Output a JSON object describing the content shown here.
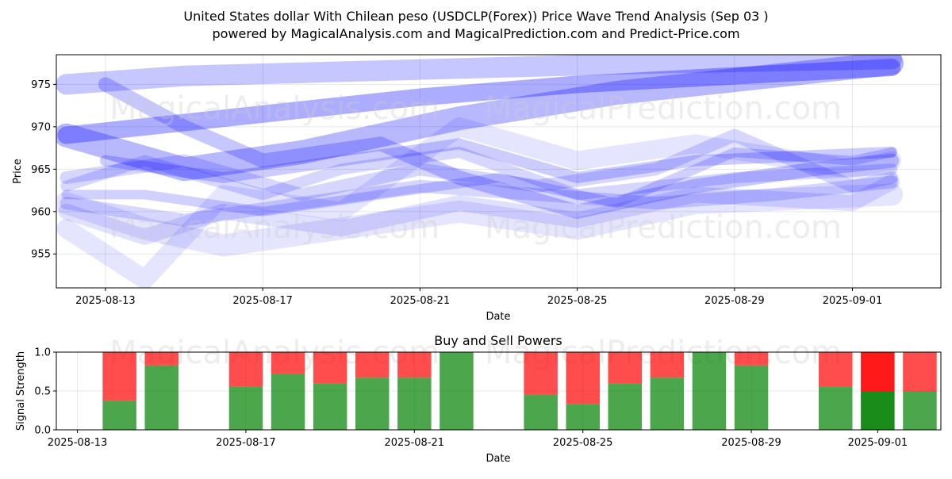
{
  "header": {
    "title": "United States dollar With Chilean peso (USDCLP(Forex)) Price Wave Trend Analysis (Sep 03 )",
    "subtitle": "powered by MagicalAnalysis.com and MagicalPrediction.com and Predict-Price.com"
  },
  "watermarks": [
    "MagicalAnalysis.com",
    "MagicalPrediction.com"
  ],
  "colors": {
    "wave": "#0000ff",
    "buy": "#008000",
    "sell": "#ff0000"
  },
  "chart_data": [
    {
      "type": "area",
      "title": "",
      "xlabel": "Date",
      "ylabel": "Price",
      "ylim": [
        951,
        978.5
      ],
      "xlim": [
        "2025-08-12",
        "2025-09-03"
      ],
      "x_ticks": [
        "2025-08-13",
        "2025-08-17",
        "2025-08-21",
        "2025-08-25",
        "2025-08-29",
        "2025-09-01"
      ],
      "y_ticks": [
        955,
        960,
        965,
        970,
        975
      ],
      "grid": true,
      "series": [
        {
          "points": [
            [
              "2025-08-12",
              969
            ],
            [
              "2025-08-14",
              970
            ],
            [
              "2025-08-17",
              971.5
            ],
            [
              "2025-08-21",
              973.5
            ],
            [
              "2025-08-25",
              975
            ],
            [
              "2025-08-29",
              976
            ],
            [
              "2025-09-02",
              977
            ]
          ]
        },
        {
          "points": [
            [
              "2025-08-12",
              969
            ],
            [
              "2025-08-15",
              965
            ],
            [
              "2025-08-18",
              967
            ],
            [
              "2025-08-22",
              971
            ],
            [
              "2025-08-26",
              974
            ],
            [
              "2025-08-30",
              976
            ],
            [
              "2025-09-02",
              977.5
            ]
          ]
        },
        {
          "points": [
            [
              "2025-08-12",
              975
            ],
            [
              "2025-08-15",
              976
            ],
            [
              "2025-08-19",
              976.5
            ],
            [
              "2025-08-23",
              977
            ],
            [
              "2025-08-27",
              977.5
            ],
            [
              "2025-09-02",
              978
            ]
          ]
        },
        {
          "points": [
            [
              "2025-08-13",
              975
            ],
            [
              "2025-08-15",
              970
            ],
            [
              "2025-08-17",
              966
            ],
            [
              "2025-08-20",
              968
            ],
            [
              "2025-08-22",
              964
            ],
            [
              "2025-08-25",
              960
            ],
            [
              "2025-08-28",
              963
            ],
            [
              "2025-08-31",
              965
            ],
            [
              "2025-09-02",
              966
            ]
          ]
        },
        {
          "points": [
            [
              "2025-08-12",
              963
            ],
            [
              "2025-08-14",
              966
            ],
            [
              "2025-08-17",
              962
            ],
            [
              "2025-08-19",
              965
            ],
            [
              "2025-08-22",
              967
            ],
            [
              "2025-08-25",
              962
            ],
            [
              "2025-08-29",
              964
            ],
            [
              "2025-09-02",
              965
            ]
          ]
        },
        {
          "points": [
            [
              "2025-08-12",
              961
            ],
            [
              "2025-08-15",
              959
            ],
            [
              "2025-08-18",
              961
            ],
            [
              "2025-08-21",
              963
            ],
            [
              "2025-08-24",
              962
            ],
            [
              "2025-08-27",
              961
            ],
            [
              "2025-08-30",
              962
            ],
            [
              "2025-09-02",
              963.5
            ]
          ]
        },
        {
          "points": [
            [
              "2025-08-12",
              960
            ],
            [
              "2025-08-14",
              957
            ],
            [
              "2025-08-16",
              960
            ],
            [
              "2025-08-19",
              958
            ],
            [
              "2025-08-22",
              961
            ],
            [
              "2025-08-25",
              959
            ],
            [
              "2025-08-28",
              962
            ],
            [
              "2025-09-01",
              961
            ],
            [
              "2025-09-02",
              963.5
            ]
          ]
        },
        {
          "points": [
            [
              "2025-08-12",
              962
            ],
            [
              "2025-08-14",
              962
            ],
            [
              "2025-08-17",
              960
            ],
            [
              "2025-08-20",
              962
            ],
            [
              "2025-08-23",
              964
            ],
            [
              "2025-08-26",
              961
            ],
            [
              "2025-08-29",
              967
            ],
            [
              "2025-09-01",
              966
            ],
            [
              "2025-09-02",
              967
            ]
          ]
        },
        {
          "points": [
            [
              "2025-08-12",
              958
            ],
            [
              "2025-08-14",
              952
            ],
            [
              "2025-08-16",
              962
            ],
            [
              "2025-08-19",
              960
            ],
            [
              "2025-08-22",
              970
            ],
            [
              "2025-08-25",
              966
            ],
            [
              "2025-08-28",
              968
            ],
            [
              "2025-09-01",
              965
            ],
            [
              "2025-09-02",
              966
            ]
          ]
        },
        {
          "points": [
            [
              "2025-08-12",
              964
            ],
            [
              "2025-08-15",
              966
            ],
            [
              "2025-08-18",
              962
            ],
            [
              "2025-08-21",
              965
            ],
            [
              "2025-08-24",
              963
            ],
            [
              "2025-08-27",
              965
            ],
            [
              "2025-08-29",
              969
            ],
            [
              "2025-09-01",
              963
            ],
            [
              "2025-09-02",
              964
            ]
          ]
        },
        {
          "points": [
            [
              "2025-08-12",
              961
            ],
            [
              "2025-08-14",
              958
            ],
            [
              "2025-08-16",
              956
            ],
            [
              "2025-08-19",
              958
            ],
            [
              "2025-08-22",
              960
            ],
            [
              "2025-08-25",
              958
            ],
            [
              "2025-08-28",
              961
            ],
            [
              "2025-09-02",
              962
            ]
          ]
        },
        {
          "points": [
            [
              "2025-08-13",
              966
            ],
            [
              "2025-08-16",
              964
            ],
            [
              "2025-08-19",
              966
            ],
            [
              "2025-08-22",
              968
            ],
            [
              "2025-08-25",
              964
            ],
            [
              "2025-08-28",
              966
            ],
            [
              "2025-09-02",
              967
            ]
          ]
        }
      ]
    },
    {
      "type": "bar",
      "title": "Buy and Sell Powers",
      "xlabel": "Date",
      "ylabel": "Signal Strength",
      "ylim": [
        0,
        1
      ],
      "xlim": [
        "2025-08-12.5",
        "2025-09-02.5"
      ],
      "x_ticks": [
        "2025-08-13",
        "2025-08-17",
        "2025-08-21",
        "2025-08-25",
        "2025-08-29",
        "2025-09-01"
      ],
      "y_ticks": [
        "0.0",
        "0.5",
        "1.0"
      ],
      "categories": [
        "2025-08-14",
        "2025-08-15",
        "2025-08-17",
        "2025-08-18",
        "2025-08-19",
        "2025-08-20",
        "2025-08-21",
        "2025-08-22",
        "2025-08-24",
        "2025-08-25",
        "2025-08-26",
        "2025-08-27",
        "2025-08-28",
        "2025-08-29",
        "2025-08-31",
        "2025-09-01",
        "2025-09-02"
      ],
      "series": [
        {
          "name": "Buy",
          "values": [
            0.38,
            0.83,
            0.56,
            0.72,
            0.6,
            0.67,
            0.67,
            1.0,
            0.45,
            0.33,
            0.6,
            0.67,
            1.0,
            0.83,
            0.56,
            0.5,
            0.5
          ]
        },
        {
          "name": "Sell",
          "values": [
            0.62,
            0.17,
            0.44,
            0.28,
            0.4,
            0.33,
            0.33,
            0.0,
            0.55,
            0.67,
            0.4,
            0.33,
            0.0,
            0.17,
            0.44,
            0.5,
            0.5
          ]
        }
      ],
      "highlight": "2025-09-01"
    }
  ]
}
